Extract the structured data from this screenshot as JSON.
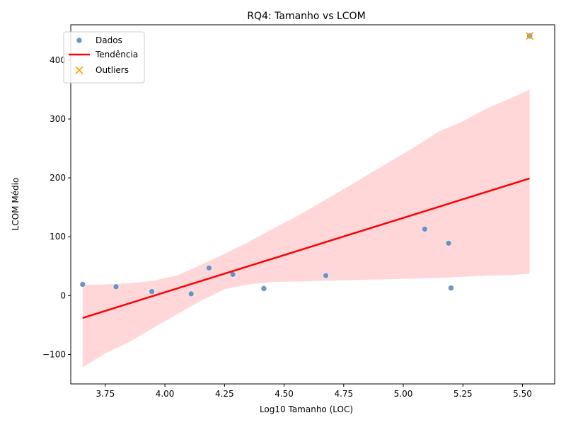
{
  "chart_data": {
    "type": "scatter",
    "title": "RQ4: Tamanho vs LCOM",
    "xlabel": "Log10 Tamanho (LOC)",
    "ylabel": "LCOM Médio",
    "xlim": [
      3.605,
      5.635
    ],
    "ylim": [
      -150,
      460
    ],
    "xticks": [
      3.75,
      4.0,
      4.25,
      4.5,
      4.75,
      5.0,
      5.25,
      5.5
    ],
    "xtick_labels": [
      "3.75",
      "4.00",
      "4.25",
      "4.50",
      "4.75",
      "5.00",
      "5.25",
      "5.50"
    ],
    "yticks": [
      -100,
      0,
      100,
      200,
      300,
      400
    ],
    "ytick_labels": [
      "−100",
      "0",
      "100",
      "200",
      "300",
      "400"
    ],
    "grid": false,
    "legend_position": "top-left",
    "legend": [
      "Dados",
      "Tendência",
      "Outliers"
    ],
    "series": [
      {
        "name": "Dados",
        "kind": "scatter",
        "color": "#4f87c1",
        "points": [
          {
            "x": 3.655,
            "y": 19
          },
          {
            "x": 3.795,
            "y": 15
          },
          {
            "x": 3.945,
            "y": 7
          },
          {
            "x": 4.11,
            "y": 3
          },
          {
            "x": 4.185,
            "y": 47
          },
          {
            "x": 4.285,
            "y": 36
          },
          {
            "x": 4.415,
            "y": 12
          },
          {
            "x": 4.675,
            "y": 34
          },
          {
            "x": 5.09,
            "y": 113
          },
          {
            "x": 5.19,
            "y": 89
          },
          {
            "x": 5.2,
            "y": 13
          },
          {
            "x": 5.53,
            "y": 441
          }
        ]
      },
      {
        "name": "Tendência",
        "kind": "line",
        "color": "#ff0000",
        "points": [
          {
            "x": 3.655,
            "y": -38
          },
          {
            "x": 5.53,
            "y": 199
          }
        ]
      },
      {
        "name": "Outliers",
        "kind": "marker-x",
        "color": "#ffa500",
        "points": [
          {
            "x": 5.53,
            "y": 441
          }
        ]
      }
    ],
    "confidence_band": {
      "color": "#ffb6b9",
      "x": [
        3.655,
        3.75,
        3.85,
        3.95,
        4.05,
        4.15,
        4.25,
        4.35,
        4.45,
        4.55,
        4.65,
        4.75,
        4.85,
        4.95,
        5.05,
        5.15,
        5.25,
        5.35,
        5.45,
        5.53
      ],
      "upper": [
        18,
        19,
        21,
        25,
        34,
        52,
        71,
        91,
        113,
        134,
        157,
        181,
        205,
        229,
        253,
        279,
        296,
        318,
        335,
        350
      ],
      "lower": [
        -122,
        -98,
        -79,
        -55,
        -32,
        -9,
        11,
        19,
        23,
        24,
        25,
        26,
        27,
        28,
        29,
        30,
        32,
        34,
        35,
        37
      ]
    }
  }
}
